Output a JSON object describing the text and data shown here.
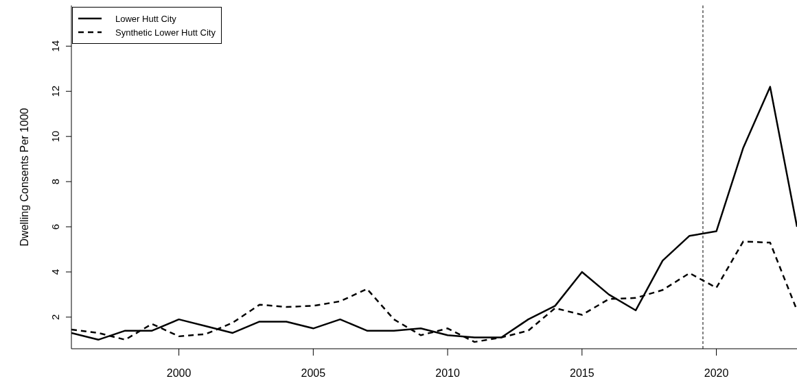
{
  "chart_data": {
    "type": "line",
    "ylabel": "Dwelling Consents Per 1000",
    "x": [
      1996,
      1997,
      1998,
      1999,
      2000,
      2001,
      2002,
      2003,
      2004,
      2005,
      2006,
      2007,
      2008,
      2009,
      2010,
      2011,
      2012,
      2013,
      2014,
      2015,
      2016,
      2017,
      2018,
      2019,
      2020,
      2021,
      2022,
      2023
    ],
    "series": [
      {
        "name": "Lower Hutt City",
        "color": "#000000",
        "line_style": "solid",
        "values": [
          1.3,
          1.0,
          1.4,
          1.4,
          1.9,
          1.6,
          1.3,
          1.8,
          1.8,
          1.5,
          1.9,
          1.4,
          1.4,
          1.5,
          1.2,
          1.1,
          1.1,
          1.9,
          2.5,
          4.0,
          3.0,
          2.3,
          4.5,
          5.6,
          5.8,
          9.5,
          12.2,
          6.0
        ]
      },
      {
        "name": "Synthetic Lower Hutt City",
        "color": "#000000",
        "line_style": "dashed",
        "values": [
          1.45,
          1.3,
          1.0,
          1.7,
          1.15,
          1.25,
          1.75,
          2.55,
          2.45,
          2.5,
          2.7,
          3.25,
          1.9,
          1.2,
          1.5,
          0.9,
          1.1,
          1.4,
          2.4,
          2.1,
          2.8,
          2.85,
          3.2,
          3.95,
          3.3,
          5.35,
          5.3,
          2.3
        ]
      }
    ],
    "xlim": [
      1996,
      2023
    ],
    "xticks": [
      2000,
      2005,
      2010,
      2015,
      2020
    ],
    "ylim": [
      0.6,
      15.8
    ],
    "yticks": [
      2,
      4,
      6,
      8,
      10,
      12,
      14
    ],
    "ref_lines": [
      {
        "axis": "x",
        "value": 2019.5,
        "color": "#000000",
        "line_style": "dashed"
      }
    ],
    "grid": false,
    "legend": "top left",
    "marker": "none"
  }
}
